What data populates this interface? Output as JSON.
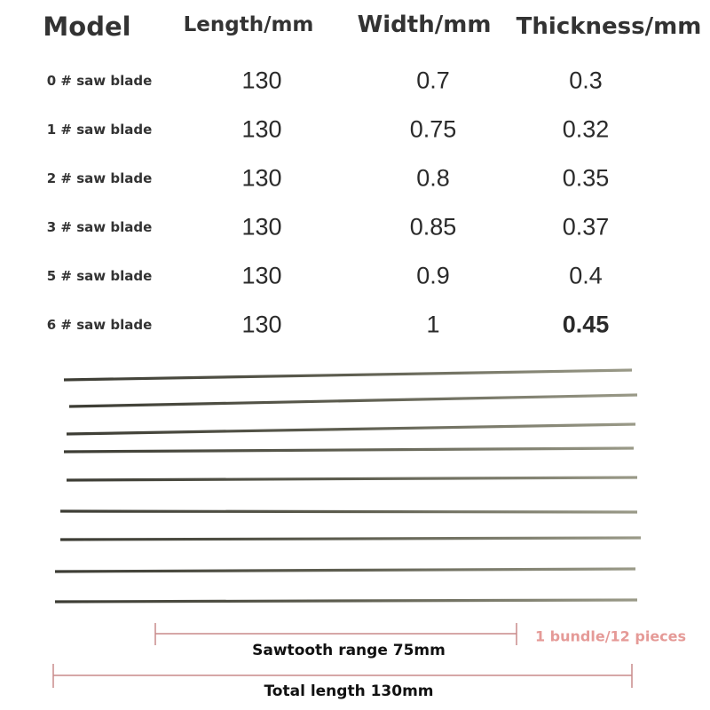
{
  "table": {
    "headers": [
      "Model",
      "Length/mm",
      "Width/mm",
      "Thickness/mm"
    ],
    "rows": [
      {
        "model": "0 # saw blade",
        "length": "130",
        "width": "0.7",
        "thickness": "0.3"
      },
      {
        "model": "1 #  saw blade",
        "length": "130",
        "width": "0.75",
        "thickness": "0.32"
      },
      {
        "model": "2 #  saw blade",
        "length": "130",
        "width": "0.8",
        "thickness": "0.35"
      },
      {
        "model": "3 # saw blade",
        "length": "130",
        "width": "0.85",
        "thickness": "0.37"
      },
      {
        "model": "5 #  saw blade",
        "length": "130",
        "width": "0.9",
        "thickness": "0.4"
      },
      {
        "model": "6 #  saw blade",
        "length": "130",
        "width": "1",
        "thickness": "0.45"
      }
    ]
  },
  "blades_shown": 9,
  "dimensions": {
    "sawtooth_label": "Sawtooth range 75mm",
    "total_label": "Total length 130mm",
    "bundle_label": "1 bundle/12 pieces",
    "line_color": "#c98a8a",
    "bundle_color": "#e59a97"
  }
}
